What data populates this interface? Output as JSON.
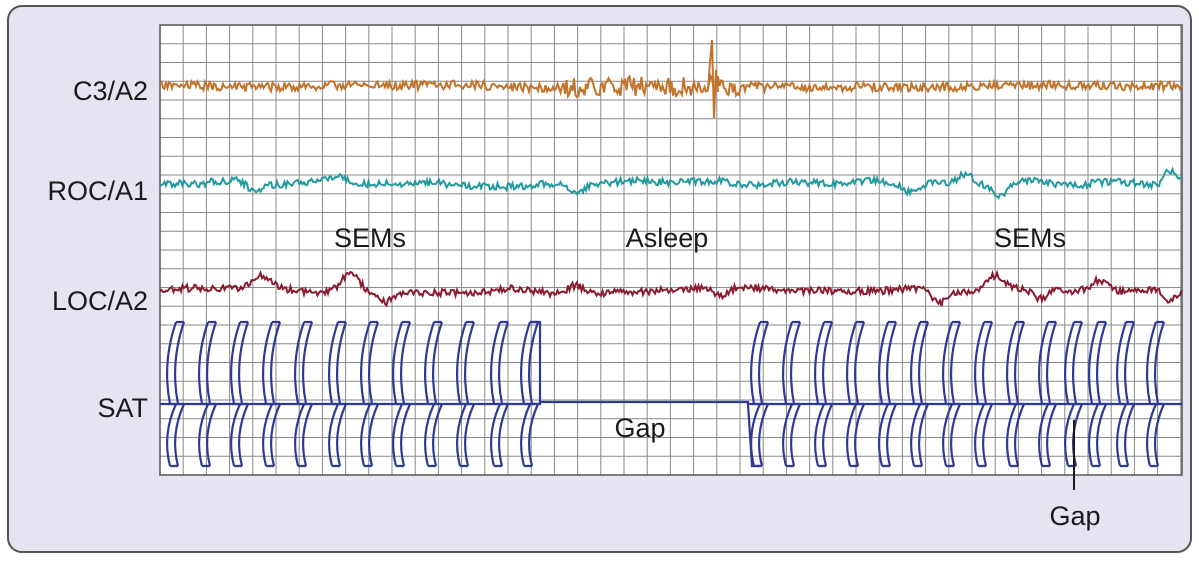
{
  "colors": {
    "panel_background": "#e7e4f1",
    "panel_border": "#555555",
    "grid_background": "#ffffff",
    "grid_line": "#8a8a8a",
    "eeg": "#c2742a",
    "roc": "#229aa0",
    "loc": "#8a1c31",
    "sat": "#2f3a94",
    "text": "#1a1a1a"
  },
  "channels": [
    {
      "id": "c3",
      "label": "C3/A2",
      "color_key": "eeg"
    },
    {
      "id": "roc",
      "label": "ROC/A1",
      "color_key": "roc"
    },
    {
      "id": "loc",
      "label": "LOC/A2",
      "color_key": "loc"
    },
    {
      "id": "sat",
      "label": "SAT",
      "color_key": "sat"
    }
  ],
  "annotations": {
    "sems_left": "SEMs",
    "asleep": "Asleep",
    "sems_right": "SEMs",
    "gap_center": "Gap",
    "gap_right": "Gap"
  }
}
